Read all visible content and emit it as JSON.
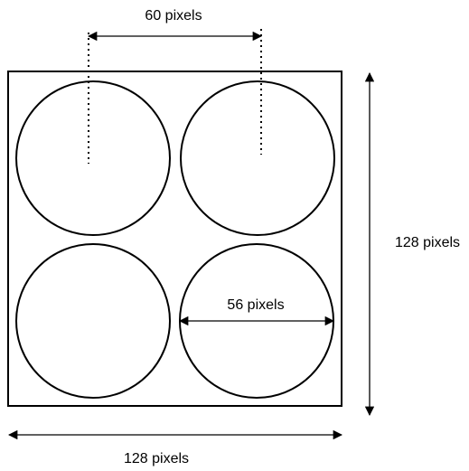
{
  "labels": {
    "center_spacing": "60 pixels",
    "circle_diameter": "56 pixels",
    "height": "128 pixels",
    "width": "128 pixels"
  },
  "colors": {
    "stroke": "#000000",
    "background": "#ffffff"
  }
}
